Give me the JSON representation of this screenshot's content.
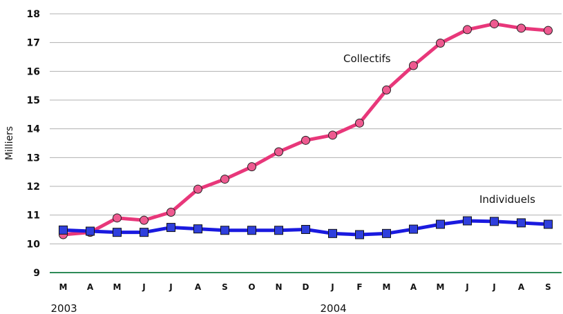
{
  "chart_data": {
    "type": "line",
    "title": "",
    "xlabel": "",
    "ylabel": "Milliers",
    "ylim": [
      9,
      18
    ],
    "yticks": [
      9,
      10,
      11,
      12,
      13,
      14,
      15,
      16,
      17,
      18
    ],
    "grid": "horizontal",
    "categories": [
      "M",
      "A",
      "M",
      "J",
      "J",
      "A",
      "S",
      "O",
      "N",
      "D",
      "J",
      "F",
      "M",
      "A",
      "M",
      "J",
      "J",
      "A",
      "S"
    ],
    "year_labels": [
      {
        "label": "2003",
        "start_index": 0
      },
      {
        "label": "2004",
        "start_index": 10
      }
    ],
    "series": [
      {
        "name": "Collectifs",
        "color": "#e8377a",
        "marker": "circle",
        "marker_fill": "#ee5a90",
        "values": [
          10.32,
          10.4,
          10.9,
          10.82,
          11.1,
          11.9,
          12.25,
          12.68,
          13.2,
          13.6,
          13.78,
          14.2,
          15.35,
          16.2,
          16.98,
          17.45,
          17.65,
          17.5,
          17.42
        ]
      },
      {
        "name": "Individuels",
        "color": "#1a1adf",
        "marker": "square",
        "marker_fill": "#2f3fdd",
        "values": [
          10.48,
          10.44,
          10.4,
          10.4,
          10.57,
          10.52,
          10.47,
          10.47,
          10.47,
          10.5,
          10.36,
          10.32,
          10.36,
          10.51,
          10.68,
          10.8,
          10.78,
          10.73,
          10.68
        ]
      }
    ],
    "baseline_color": "#2e8b57",
    "grid_color": "#b0b0b0"
  }
}
